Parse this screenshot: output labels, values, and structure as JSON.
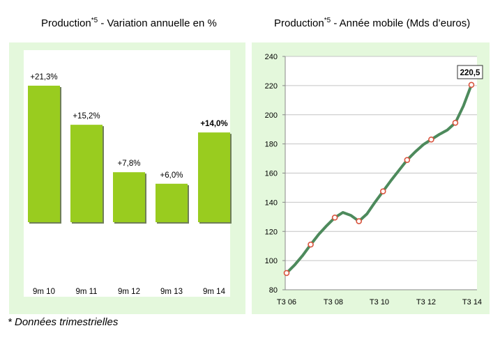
{
  "title_left": {
    "main": "Production",
    "sup": "*5",
    "rest": " - Variation annuelle en %"
  },
  "title_right": {
    "main": "Production",
    "sup": "*5",
    "rest": " - Année mobile (Mds d’euros)"
  },
  "footnote": "* Données trimestrielles",
  "colors": {
    "panel_bg": "#e4f8dc",
    "bar": "#99cc1f",
    "bar_shadow": "#6f7e58",
    "line": "#4d8a5c",
    "point": "#d9543e"
  },
  "chart_data": [
    {
      "type": "bar",
      "categories": [
        "9m 10",
        "9m 11",
        "9m 12",
        "9m 13",
        "9m 14"
      ],
      "values": [
        21.3,
        15.2,
        7.8,
        6.0,
        14.0
      ],
      "data_labels": [
        "+21,3%",
        "+15,2%",
        "+7,8%",
        "+6,0%",
        "+14,0%"
      ],
      "highlight_last_label_bold": true,
      "title": "Production*5 - Variation annuelle en %",
      "ylim": [
        0,
        21.3
      ],
      "grid": false
    },
    {
      "type": "line",
      "x_tick_labels": [
        "T3 06",
        "T3 08",
        "T3 10",
        "T3 12",
        "T3 14"
      ],
      "yticks": [
        80,
        100,
        120,
        140,
        160,
        180,
        200,
        220,
        240
      ],
      "ylim": [
        80,
        240
      ],
      "grid": true,
      "title": "Production*5 - Année mobile (Mds d’euros)",
      "annotation": {
        "text": "220,5",
        "value": 220.5
      },
      "series": [
        {
          "values": [
            91.5,
            97,
            103.5,
            111,
            118,
            124,
            129.5,
            133,
            131,
            127,
            132,
            140,
            147.5,
            155,
            162,
            169,
            174.5,
            179.5,
            183,
            186.5,
            189.5,
            194.5,
            206,
            220.5
          ],
          "marker_indices": [
            0,
            3,
            6,
            9,
            12,
            15,
            18,
            21,
            23
          ]
        }
      ]
    }
  ]
}
